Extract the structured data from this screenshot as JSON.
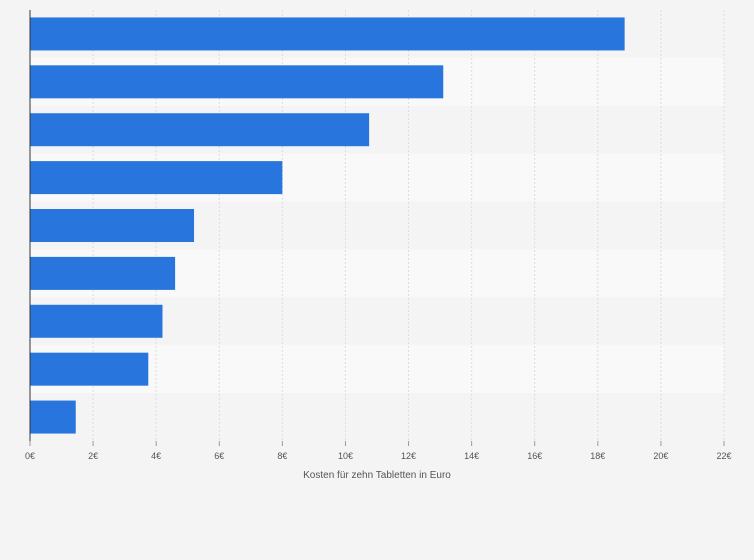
{
  "chart_data": {
    "type": "bar",
    "orientation": "horizontal",
    "xlabel": "Kosten für zehn Tabletten in Euro",
    "xlim": [
      0,
      22
    ],
    "x_ticks": [
      0,
      2,
      4,
      6,
      8,
      10,
      12,
      14,
      16,
      18,
      20,
      22
    ],
    "tick_suffix": "€",
    "grid": true,
    "bar_color": "#2876dd",
    "band_colors": [
      "#f4f4f4",
      "#f9f9f9"
    ],
    "series": [
      {
        "values": [
          18.85,
          13.1,
          10.75,
          8.0,
          5.2,
          4.6,
          4.2,
          3.75,
          1.45
        ]
      }
    ]
  }
}
